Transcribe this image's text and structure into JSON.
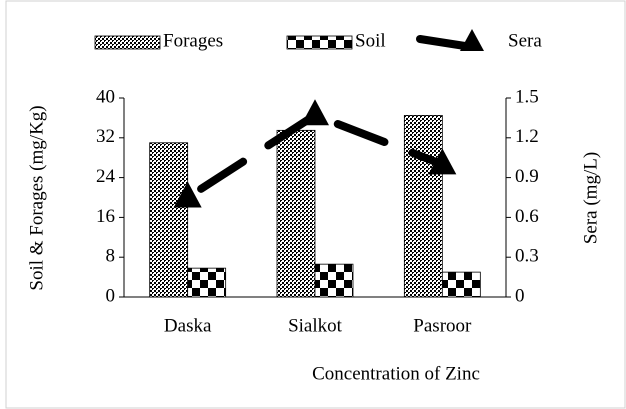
{
  "chart_data": {
    "type": "bar",
    "x_label": "Concentration of Zinc",
    "y_label": "Soil & Forages (mg/Kg)",
    "y2_label": "Sera (mg/L)",
    "categories": [
      "Daska",
      "Sialkot",
      "Pasroor"
    ],
    "series": [
      {
        "name": "Forages",
        "color": "#000000",
        "values": [
          31,
          33.5,
          36.5
        ]
      },
      {
        "name": "Soil",
        "color": "#000000",
        "values": [
          5.8,
          6.6,
          5
        ]
      },
      {
        "name": "Sera",
        "color": "#000000",
        "type": "line",
        "axis": "y2",
        "values": [
          0.75,
          1.37,
          1.0
        ]
      }
    ],
    "ylim": [
      0,
      40
    ],
    "yticks": [
      0,
      8,
      16,
      24,
      32,
      40
    ],
    "y2lim": [
      0,
      1.5
    ],
    "y2ticks": [
      0,
      0.3,
      0.6,
      0.9,
      1.2,
      1.5
    ],
    "legend": "top"
  }
}
